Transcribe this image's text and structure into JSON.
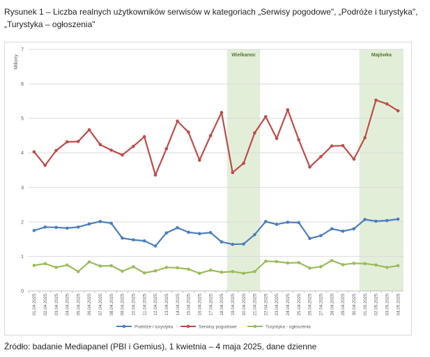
{
  "caption": "Rysunek 1 – Liczba realnych użytkowników serwisów w kategoriach „Serwisy pogodowe\", „Podróże i turystyka\", „Turystyka – ogłoszenia\"",
  "source": "Źródło: badanie Mediapanel (PBI i Gemius), 1 kwietnia – 4 maja 2025, dane dzienne",
  "chart_data": {
    "type": "line",
    "ylabel": "Miliony",
    "ylim": [
      0,
      7
    ],
    "yticks": [
      "0",
      "1",
      "2",
      "3",
      "4",
      "5",
      "6",
      "7"
    ],
    "grid": true,
    "legend": "bottom",
    "categories": [
      "01.04.2025",
      "02.04.2025",
      "03.04.2025",
      "04.04.2025",
      "05.04.2025",
      "06.04.2025",
      "07.04.2025",
      "08.04.2025",
      "09.04.2025",
      "10.04.2025",
      "11.04.2025",
      "12.04.2025",
      "13.04.2025",
      "14.04.2025",
      "15.04.2025",
      "16.04.2025",
      "17.04.2025",
      "18.04.2025",
      "19.04.2025",
      "20.04.2025",
      "21.04.2025",
      "22.04.2025",
      "23.04.2025",
      "24.04.2025",
      "25.04.2025",
      "26.04.2025",
      "27.04.2025",
      "28.04.2025",
      "29.04.2025",
      "30.04.2025",
      "01.05.2025",
      "02.05.2025",
      "03.05.2025",
      "04.05.2025"
    ],
    "bands": [
      {
        "label": "Wielkanoc",
        "from": "19.04.2025",
        "to": "21.04.2025",
        "color": "#e3eed9"
      },
      {
        "label": "Majówka",
        "from": "01.05.2025",
        "to": "04.05.2025",
        "color": "#e3eed9"
      }
    ],
    "series": [
      {
        "name": "Podróże i turystyka",
        "color": "#4a7ebb",
        "values": [
          1.75,
          1.85,
          1.84,
          1.82,
          1.85,
          1.94,
          2.01,
          1.96,
          1.53,
          1.48,
          1.45,
          1.3,
          1.68,
          1.83,
          1.7,
          1.66,
          1.69,
          1.42,
          1.35,
          1.36,
          1.63,
          2.01,
          1.93,
          1.99,
          1.98,
          1.52,
          1.6,
          1.8,
          1.73,
          1.8,
          2.07,
          2.02,
          2.04,
          2.08
        ]
      },
      {
        "name": "Serwisy pogodowe",
        "color": "#be4b48",
        "values": [
          4.03,
          3.64,
          4.07,
          4.32,
          4.33,
          4.67,
          4.24,
          4.08,
          3.94,
          4.19,
          4.47,
          3.36,
          4.12,
          4.92,
          4.6,
          3.79,
          4.5,
          5.17,
          3.43,
          3.7,
          4.58,
          5.05,
          4.42,
          5.25,
          4.38,
          3.59,
          3.89,
          4.2,
          4.21,
          3.82,
          4.44,
          5.53,
          5.42,
          5.22
        ]
      },
      {
        "name": "Turystyka - ogłoszenia",
        "color": "#9bbb59",
        "values": [
          0.74,
          0.79,
          0.68,
          0.75,
          0.56,
          0.84,
          0.72,
          0.73,
          0.57,
          0.7,
          0.52,
          0.58,
          0.68,
          0.67,
          0.63,
          0.51,
          0.6,
          0.54,
          0.56,
          0.51,
          0.56,
          0.86,
          0.85,
          0.81,
          0.82,
          0.66,
          0.7,
          0.88,
          0.76,
          0.8,
          0.79,
          0.75,
          0.68,
          0.73
        ]
      }
    ]
  }
}
